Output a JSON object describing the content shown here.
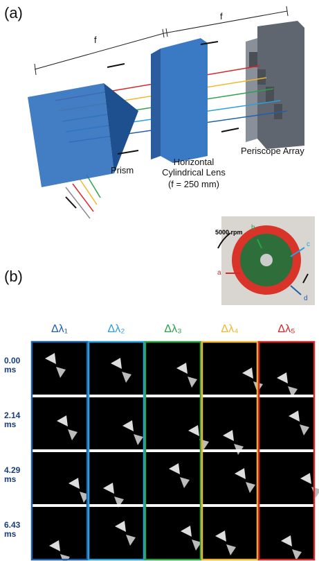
{
  "panel_a": {
    "label": "(a)",
    "focal_labels": [
      "f",
      "f"
    ],
    "prism": "Prism",
    "lens": "Horizontal Cylindrical Lens",
    "lens_focal": "(f = 250 mm)",
    "periscope": "Periscope Array"
  },
  "panel_b": {
    "label": "(b)",
    "photo": {
      "speed": "5000 rpm",
      "markers": [
        "a",
        "b",
        "c",
        "d"
      ]
    },
    "columns": [
      "Δλ₁",
      "Δλ₂",
      "Δλ₃",
      "Δλ₄",
      "Δλ₅"
    ],
    "column_colors": [
      "#1f5fa8",
      "#2b9fd9",
      "#2ca24a",
      "#f0b82c",
      "#d6282b"
    ],
    "rows": [
      "0.00 ms",
      "2.14 ms",
      "4.29 ms",
      "6.43 ms"
    ]
  }
}
